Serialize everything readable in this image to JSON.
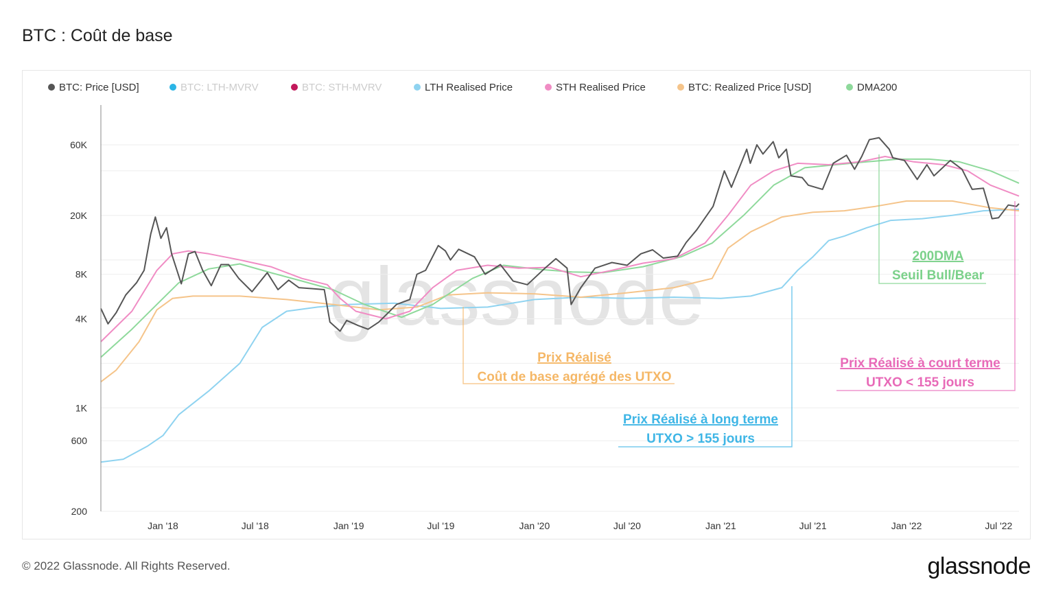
{
  "page": {
    "title": "BTC : Coût de base",
    "copyright": "© 2022 Glassnode. All Rights Reserved.",
    "watermark": "glassnode",
    "logo": "glassnode"
  },
  "chart_data": {
    "type": "line",
    "title": "BTC : Coût de base",
    "y_scale": "log",
    "ylim": [
      200,
      90000
    ],
    "xlim": [
      "2017-09-01",
      "2022-08-10"
    ],
    "y_ticks": [
      {
        "value": 200,
        "label": "200"
      },
      {
        "value": 600,
        "label": "600"
      },
      {
        "value": 1000,
        "label": "1K"
      },
      {
        "value": 4000,
        "label": "4K"
      },
      {
        "value": 8000,
        "label": "8K"
      },
      {
        "value": 20000,
        "label": "20K"
      },
      {
        "value": 60000,
        "label": "60K"
      }
    ],
    "x_ticks": [
      {
        "date": "2018-01-01",
        "label": "Jan '18"
      },
      {
        "date": "2018-07-01",
        "label": "Jul '18"
      },
      {
        "date": "2019-01-01",
        "label": "Jan '19"
      },
      {
        "date": "2019-07-01",
        "label": "Jul '19"
      },
      {
        "date": "2020-01-01",
        "label": "Jan '20"
      },
      {
        "date": "2020-07-01",
        "label": "Jul '20"
      },
      {
        "date": "2021-01-01",
        "label": "Jan '21"
      },
      {
        "date": "2021-07-01",
        "label": "Jul '21"
      },
      {
        "date": "2022-01-01",
        "label": "Jan '22"
      },
      {
        "date": "2022-07-01",
        "label": "Jul '22"
      }
    ],
    "grid": true,
    "legend_position": "top-left",
    "legend": [
      {
        "name": "BTC: Price [USD]",
        "color": "#555555",
        "active": true
      },
      {
        "name": "BTC: LTH-MVRV",
        "color": "#2bb5e6",
        "active": false
      },
      {
        "name": "BTC: STH-MVRV",
        "color": "#c2185b",
        "active": false
      },
      {
        "name": "LTH Realised Price",
        "color": "#8fd3f0",
        "active": true
      },
      {
        "name": "STH Realised Price",
        "color": "#f08cc4",
        "active": true
      },
      {
        "name": "BTC: Realized Price [USD]",
        "color": "#f5c48a",
        "active": true
      },
      {
        "name": "DMA200",
        "color": "#8ed99b",
        "active": true
      }
    ],
    "series": [
      {
        "name": "BTC: Price [USD]",
        "color": "#555555",
        "width": 2,
        "points": [
          [
            "2017-09-01",
            4700
          ],
          [
            "2017-09-15",
            3700
          ],
          [
            "2017-10-01",
            4400
          ],
          [
            "2017-10-20",
            5800
          ],
          [
            "2017-11-10",
            7000
          ],
          [
            "2017-11-25",
            8500
          ],
          [
            "2017-12-08",
            15000
          ],
          [
            "2017-12-17",
            19500
          ],
          [
            "2017-12-28",
            14000
          ],
          [
            "2018-01-08",
            16500
          ],
          [
            "2018-01-18",
            11000
          ],
          [
            "2018-02-06",
            6900
          ],
          [
            "2018-02-20",
            11000
          ],
          [
            "2018-03-05",
            11400
          ],
          [
            "2018-03-20",
            8500
          ],
          [
            "2018-04-06",
            6700
          ],
          [
            "2018-04-25",
            9300
          ],
          [
            "2018-05-10",
            9300
          ],
          [
            "2018-05-30",
            7500
          ],
          [
            "2018-06-25",
            6100
          ],
          [
            "2018-07-25",
            8200
          ],
          [
            "2018-08-15",
            6300
          ],
          [
            "2018-09-05",
            7300
          ],
          [
            "2018-09-25",
            6500
          ],
          [
            "2018-10-20",
            6400
          ],
          [
            "2018-11-14",
            6300
          ],
          [
            "2018-11-25",
            3800
          ],
          [
            "2018-12-15",
            3300
          ],
          [
            "2018-12-28",
            3900
          ],
          [
            "2019-01-20",
            3600
          ],
          [
            "2019-02-08",
            3400
          ],
          [
            "2019-03-01",
            3800
          ],
          [
            "2019-04-05",
            5000
          ],
          [
            "2019-05-01",
            5400
          ],
          [
            "2019-05-15",
            8000
          ],
          [
            "2019-06-01",
            8500
          ],
          [
            "2019-06-26",
            12500
          ],
          [
            "2019-07-10",
            11500
          ],
          [
            "2019-07-20",
            10000
          ],
          [
            "2019-08-05",
            11800
          ],
          [
            "2019-09-05",
            10500
          ],
          [
            "2019-09-26",
            8000
          ],
          [
            "2019-10-26",
            9300
          ],
          [
            "2019-11-20",
            7200
          ],
          [
            "2019-12-18",
            6800
          ],
          [
            "2020-01-20",
            8700
          ],
          [
            "2020-02-12",
            10200
          ],
          [
            "2020-03-05",
            8800
          ],
          [
            "2020-03-13",
            5000
          ],
          [
            "2020-04-01",
            6500
          ],
          [
            "2020-04-29",
            8800
          ],
          [
            "2020-06-01",
            9600
          ],
          [
            "2020-07-01",
            9200
          ],
          [
            "2020-07-28",
            11000
          ],
          [
            "2020-08-20",
            11700
          ],
          [
            "2020-09-10",
            10300
          ],
          [
            "2020-10-08",
            10600
          ],
          [
            "2020-10-25",
            13100
          ],
          [
            "2020-11-15",
            16000
          ],
          [
            "2020-12-01",
            19200
          ],
          [
            "2020-12-17",
            23000
          ],
          [
            "2021-01-08",
            40000
          ],
          [
            "2021-01-22",
            31000
          ],
          [
            "2021-02-10",
            45000
          ],
          [
            "2021-02-21",
            56000
          ],
          [
            "2021-02-28",
            45000
          ],
          [
            "2021-03-13",
            60000
          ],
          [
            "2021-03-25",
            52000
          ],
          [
            "2021-04-14",
            63000
          ],
          [
            "2021-04-25",
            49000
          ],
          [
            "2021-05-10",
            56000
          ],
          [
            "2021-05-19",
            37000
          ],
          [
            "2021-06-10",
            36000
          ],
          [
            "2021-06-22",
            32000
          ],
          [
            "2021-07-20",
            30000
          ],
          [
            "2021-08-10",
            45000
          ],
          [
            "2021-09-05",
            51000
          ],
          [
            "2021-09-21",
            41000
          ],
          [
            "2021-10-05",
            50000
          ],
          [
            "2021-10-20",
            65000
          ],
          [
            "2021-11-08",
            67000
          ],
          [
            "2021-11-28",
            56000
          ],
          [
            "2021-12-05",
            49000
          ],
          [
            "2021-12-28",
            47000
          ],
          [
            "2022-01-22",
            35000
          ],
          [
            "2022-02-10",
            44000
          ],
          [
            "2022-02-24",
            37000
          ],
          [
            "2022-03-28",
            47000
          ],
          [
            "2022-04-20",
            41000
          ],
          [
            "2022-05-10",
            30000
          ],
          [
            "2022-06-01",
            30500
          ],
          [
            "2022-06-13",
            22000
          ],
          [
            "2022-06-18",
            19000
          ],
          [
            "2022-07-01",
            19300
          ],
          [
            "2022-07-20",
            23500
          ],
          [
            "2022-08-05",
            23000
          ],
          [
            "2022-08-10",
            24000
          ]
        ]
      },
      {
        "name": "STH Realised Price",
        "color": "#f08cc4",
        "width": 2,
        "points": [
          [
            "2017-09-01",
            2800
          ],
          [
            "2017-11-01",
            4500
          ],
          [
            "2017-12-20",
            8500
          ],
          [
            "2018-01-20",
            11000
          ],
          [
            "2018-02-20",
            11500
          ],
          [
            "2018-04-01",
            11000
          ],
          [
            "2018-06-01",
            10000
          ],
          [
            "2018-08-01",
            9000
          ],
          [
            "2018-10-01",
            7500
          ],
          [
            "2018-11-20",
            6800
          ],
          [
            "2018-12-15",
            5500
          ],
          [
            "2019-01-15",
            4500
          ],
          [
            "2019-03-15",
            4000
          ],
          [
            "2019-05-01",
            4500
          ],
          [
            "2019-06-15",
            6500
          ],
          [
            "2019-08-01",
            8500
          ],
          [
            "2019-10-01",
            9200
          ],
          [
            "2019-12-01",
            8800
          ],
          [
            "2020-02-01",
            8900
          ],
          [
            "2020-04-01",
            7700
          ],
          [
            "2020-06-01",
            8500
          ],
          [
            "2020-08-01",
            9500
          ],
          [
            "2020-10-01",
            10200
          ],
          [
            "2020-12-01",
            13000
          ],
          [
            "2021-01-15",
            20000
          ],
          [
            "2021-03-01",
            32000
          ],
          [
            "2021-04-15",
            40000
          ],
          [
            "2021-06-01",
            45000
          ],
          [
            "2021-08-01",
            44000
          ],
          [
            "2021-10-01",
            46000
          ],
          [
            "2021-11-20",
            50000
          ],
          [
            "2022-01-15",
            46000
          ],
          [
            "2022-03-15",
            44000
          ],
          [
            "2022-05-01",
            40000
          ],
          [
            "2022-06-15",
            32000
          ],
          [
            "2022-08-10",
            27000
          ]
        ]
      },
      {
        "name": "DMA200",
        "color": "#8ed99b",
        "width": 2,
        "points": [
          [
            "2017-09-01",
            2200
          ],
          [
            "2017-11-01",
            3400
          ],
          [
            "2017-12-20",
            5000
          ],
          [
            "2018-02-01",
            7000
          ],
          [
            "2018-04-01",
            8700
          ],
          [
            "2018-06-01",
            9400
          ],
          [
            "2018-08-01",
            8200
          ],
          [
            "2018-10-01",
            7200
          ],
          [
            "2018-12-01",
            6300
          ],
          [
            "2019-02-01",
            5000
          ],
          [
            "2019-04-15",
            4100
          ],
          [
            "2019-06-15",
            5000
          ],
          [
            "2019-09-01",
            7500
          ],
          [
            "2019-11-01",
            9200
          ],
          [
            "2020-01-15",
            8600
          ],
          [
            "2020-03-15",
            8300
          ],
          [
            "2020-05-15",
            8200
          ],
          [
            "2020-08-01",
            9000
          ],
          [
            "2020-10-15",
            10500
          ],
          [
            "2020-12-15",
            13000
          ],
          [
            "2021-02-15",
            20000
          ],
          [
            "2021-04-15",
            32000
          ],
          [
            "2021-06-15",
            42000
          ],
          [
            "2021-08-15",
            44000
          ],
          [
            "2021-10-15",
            46000
          ],
          [
            "2021-12-15",
            48000
          ],
          [
            "2022-02-15",
            48000
          ],
          [
            "2022-04-15",
            46000
          ],
          [
            "2022-06-15",
            40000
          ],
          [
            "2022-08-10",
            33000
          ]
        ]
      },
      {
        "name": "BTC: Realized Price [USD]",
        "color": "#f5c48a",
        "width": 2,
        "points": [
          [
            "2017-09-01",
            1500
          ],
          [
            "2017-10-01",
            1800
          ],
          [
            "2017-11-15",
            2800
          ],
          [
            "2017-12-20",
            4600
          ],
          [
            "2018-01-20",
            5500
          ],
          [
            "2018-03-01",
            5700
          ],
          [
            "2018-06-01",
            5700
          ],
          [
            "2018-09-01",
            5400
          ],
          [
            "2018-12-01",
            5000
          ],
          [
            "2019-03-01",
            4600
          ],
          [
            "2019-05-15",
            4800
          ],
          [
            "2019-07-15",
            5800
          ],
          [
            "2019-10-01",
            6000
          ],
          [
            "2020-01-01",
            5900
          ],
          [
            "2020-04-01",
            5600
          ],
          [
            "2020-07-01",
            6000
          ],
          [
            "2020-10-01",
            6500
          ],
          [
            "2020-12-15",
            7500
          ],
          [
            "2021-01-15",
            12000
          ],
          [
            "2021-03-01",
            15500
          ],
          [
            "2021-05-01",
            19500
          ],
          [
            "2021-07-01",
            21000
          ],
          [
            "2021-09-01",
            21500
          ],
          [
            "2021-11-01",
            23000
          ],
          [
            "2022-01-01",
            25000
          ],
          [
            "2022-04-01",
            25000
          ],
          [
            "2022-06-15",
            22500
          ],
          [
            "2022-08-10",
            21500
          ]
        ]
      },
      {
        "name": "LTH Realised Price",
        "color": "#8fd3f0",
        "width": 2,
        "points": [
          [
            "2017-09-01",
            430
          ],
          [
            "2017-10-15",
            450
          ],
          [
            "2017-12-01",
            550
          ],
          [
            "2018-01-01",
            650
          ],
          [
            "2018-02-01",
            900
          ],
          [
            "2018-04-01",
            1300
          ],
          [
            "2018-06-01",
            2000
          ],
          [
            "2018-07-15",
            3500
          ],
          [
            "2018-09-01",
            4500
          ],
          [
            "2018-11-01",
            4800
          ],
          [
            "2019-01-01",
            5000
          ],
          [
            "2019-04-01",
            5100
          ],
          [
            "2019-07-01",
            4700
          ],
          [
            "2019-10-01",
            4800
          ],
          [
            "2020-01-01",
            5400
          ],
          [
            "2020-04-01",
            5600
          ],
          [
            "2020-07-01",
            5500
          ],
          [
            "2020-10-01",
            5600
          ],
          [
            "2021-01-01",
            5500
          ],
          [
            "2021-03-01",
            5700
          ],
          [
            "2021-05-01",
            6500
          ],
          [
            "2021-06-01",
            8500
          ],
          [
            "2021-07-01",
            10500
          ],
          [
            "2021-08-01",
            13500
          ],
          [
            "2021-09-01",
            14500
          ],
          [
            "2021-10-15",
            16500
          ],
          [
            "2021-12-01",
            18500
          ],
          [
            "2022-02-01",
            19000
          ],
          [
            "2022-04-01",
            20000
          ],
          [
            "2022-06-01",
            21500
          ],
          [
            "2022-08-10",
            22000
          ]
        ]
      }
    ],
    "annotations": [
      {
        "title": "Prix Réalisé",
        "subtitle": "Coût de base agrégé des UTXO",
        "color": "#f5b766"
      },
      {
        "title": "Prix Réalisé à long terme",
        "subtitle": "UTXO > 155 jours",
        "color": "#3fb6e6"
      },
      {
        "title": "200DMA",
        "subtitle": "Seuil Bull/Bear",
        "color": "#7bd18a"
      },
      {
        "title": "Prix Réalisé à court terme",
        "subtitle": "UTXO < 155 jours",
        "color": "#e86ab8"
      }
    ]
  }
}
